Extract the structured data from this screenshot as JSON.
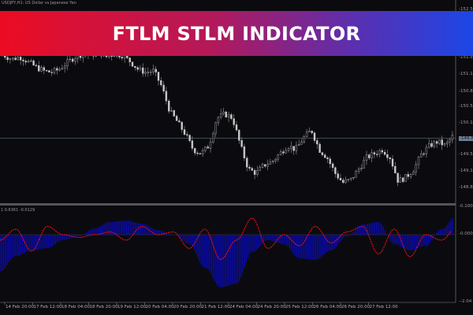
{
  "banner": {
    "title": "FTLM STLM INDICATOR",
    "colors": [
      "#ec0c22",
      "#1c46e6"
    ]
  },
  "symbol_title": "USDJPY,H1: US Dollar vs Japanese Yen",
  "indicator_label": "1 0.6361 -0.0129",
  "chart_data": [
    {
      "type": "candlestick",
      "title": "",
      "price_axis_ticks": [
        "152.5",
        "151.5",
        "151.1",
        "150.8",
        "150.5",
        "150.1",
        "149.8",
        "149.5",
        "149.1",
        "148.8"
      ],
      "current_price": "149.8",
      "close_path": [
        151.45,
        151.37,
        151.42,
        151.33,
        151.22,
        151.14,
        151.11,
        151.17,
        151.3,
        151.42,
        151.48,
        151.45,
        151.52,
        151.42,
        151.48,
        151.45,
        151.33,
        151.17,
        151.11,
        151.14,
        150.83,
        150.35,
        150.12,
        149.88,
        149.57,
        149.49,
        149.65,
        150.2,
        150.28,
        150.2,
        149.65,
        149.18,
        149.1,
        149.26,
        149.33,
        149.49,
        149.65,
        149.57,
        149.8,
        149.96,
        149.57,
        149.41,
        149.1,
        148.91,
        148.97,
        149.18,
        149.41,
        149.49,
        149.57,
        149.41,
        148.94,
        149.02,
        149.18,
        149.49,
        149.65,
        149.73,
        149.65,
        149.85
      ],
      "candle_color": "#c8c8c8"
    },
    {
      "type": "bar+line",
      "axis_ticks": [
        "0.1000",
        "0.0000",
        "-2.04"
      ],
      "series": [
        {
          "values": [
            -0.134,
            -0.077,
            -0.057,
            -0.049,
            -0.02,
            -0.006,
            0.023,
            0.046,
            0.051,
            0.04,
            0.017,
            0,
            -0.034,
            -0.12,
            -0.191,
            -0.177,
            -0.063,
            -0.02,
            -0.034,
            -0.086,
            -0.091,
            -0.057,
            -0.006,
            0.037,
            0.046,
            -0.034,
            -0.057,
            -0.04,
            0.02,
            0.07
          ],
          "color": "#0a0ae6",
          "style": "histogram"
        },
        {
          "values": [
            -0.02,
            0.02,
            -0.06,
            0.03,
            0.0,
            -0.01,
            0.0,
            0.01,
            -0.02,
            0.03,
            0.0,
            0.01,
            -0.05,
            0.02,
            -0.09,
            -0.02,
            0.06,
            -0.05,
            0.0,
            -0.04,
            0.03,
            -0.03,
            0.01,
            0.03,
            -0.07,
            0.02,
            -0.08,
            0.0,
            -0.02,
            0.03
          ],
          "color": "#e01010",
          "style": "dotted-line"
        }
      ]
    }
  ],
  "time_axis": [
    "14 Feb 20:00",
    "17 Feb 12:00",
    "18 Feb 04:00",
    "18 Feb 20:00",
    "19 Feb 12:00",
    "20 Feb 04:00",
    "20 Feb 20:00",
    "21 Feb 12:00",
    "24 Feb 04:00",
    "24 Feb 20:00",
    "25 Feb 12:00",
    "26 Feb 04:00",
    "26 Feb 20:00",
    "27 Feb 12:00"
  ]
}
